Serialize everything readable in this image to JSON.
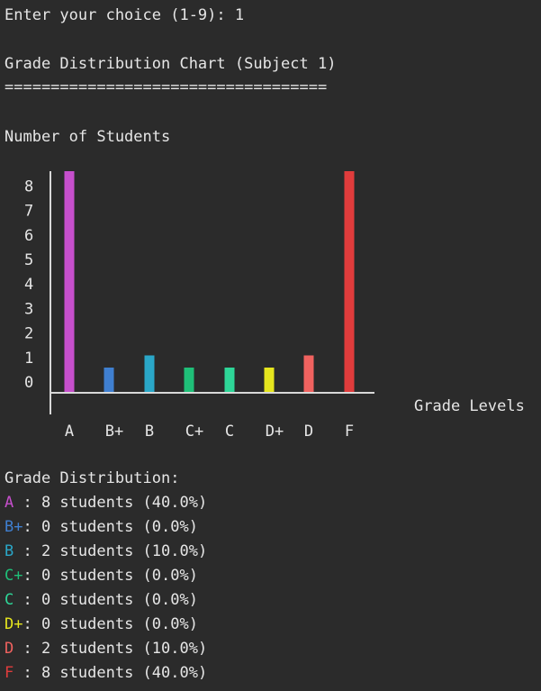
{
  "terminal": {
    "prompt": "Enter your choice (1-9): 1",
    "heading": "Grade Distribution Chart (Subject 1)",
    "underline": "===================================",
    "summary_title": "Grade Distribution:"
  },
  "chart_data": {
    "type": "bar",
    "ylabel": "Number of Students",
    "xlabel": "Grade Levels",
    "yticks": [
      "0",
      "1",
      "2",
      "3",
      "4",
      "5",
      "6",
      "7",
      "8"
    ],
    "ylim": [
      0,
      8
    ],
    "categories": [
      "A",
      "B+",
      "B",
      "C+",
      "C",
      "D+",
      "D",
      "F"
    ],
    "values": [
      8,
      0,
      2,
      0,
      0,
      0,
      2,
      8
    ],
    "colors": [
      "#c64fcc",
      "#3f7fd0",
      "#2aa7c8",
      "#1fbf78",
      "#2ed698",
      "#e6e61e",
      "#f0625f",
      "#e03c3c"
    ]
  },
  "summary": [
    {
      "grade": "A ",
      "text": ": 8 students (40.0%)"
    },
    {
      "grade": "B+",
      "text": ": 0 students (0.0%)"
    },
    {
      "grade": "B ",
      "text": ": 2 students (10.0%)"
    },
    {
      "grade": "C+",
      "text": ": 0 students (0.0%)"
    },
    {
      "grade": "C ",
      "text": ": 0 students (0.0%)"
    },
    {
      "grade": "D+",
      "text": ": 0 students (0.0%)"
    },
    {
      "grade": "D ",
      "text": ": 2 students (10.0%)"
    },
    {
      "grade": "F ",
      "text": ": 8 students (40.0%)"
    }
  ]
}
